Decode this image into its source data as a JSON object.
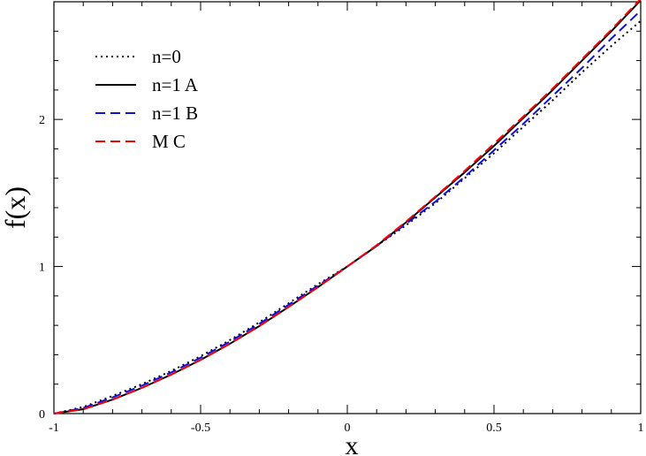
{
  "chart_data": {
    "type": "line",
    "title": "",
    "xlabel": "x",
    "ylabel": "f(x)",
    "xlim": [
      -1,
      1
    ],
    "ylim": [
      0,
      2.8
    ],
    "xticks": [
      -1,
      -0.5,
      0,
      0.5,
      1
    ],
    "xtick_labels": [
      "-1",
      "-0.5",
      "0",
      "0.5",
      "1"
    ],
    "yticks": [
      0,
      1,
      2
    ],
    "ytick_labels": [
      "0",
      "1",
      "2"
    ],
    "grid": false,
    "legend_position": "top-left",
    "x": [
      -1.0,
      -0.9,
      -0.8,
      -0.7,
      -0.6,
      -0.5,
      -0.4,
      -0.3,
      -0.2,
      -0.1,
      0.0,
      0.1,
      0.2,
      0.3,
      0.4,
      0.5,
      0.6,
      0.7,
      0.8,
      0.9,
      1.0
    ],
    "series": [
      {
        "name": "n=0",
        "color": "#000000",
        "style": "dotted",
        "values": [
          0.0,
          0.045,
          0.12,
          0.2,
          0.29,
          0.39,
          0.5,
          0.62,
          0.75,
          0.88,
          1.0,
          1.14,
          1.28,
          1.43,
          1.6,
          1.77,
          1.95,
          2.13,
          2.32,
          2.5,
          2.67
        ]
      },
      {
        "name": "n=1 A",
        "color": "#000000",
        "style": "solid",
        "values": [
          0.0,
          0.03,
          0.095,
          0.175,
          0.265,
          0.365,
          0.475,
          0.595,
          0.725,
          0.86,
          1.0,
          1.14,
          1.3,
          1.47,
          1.64,
          1.82,
          2.01,
          2.2,
          2.4,
          2.6,
          2.81
        ]
      },
      {
        "name": "n=1 B",
        "color": "#1010e0",
        "style": "dashed",
        "values": [
          0.0,
          0.038,
          0.11,
          0.19,
          0.28,
          0.38,
          0.49,
          0.61,
          0.74,
          0.87,
          1.0,
          1.14,
          1.29,
          1.44,
          1.61,
          1.79,
          1.97,
          2.16,
          2.35,
          2.55,
          2.74
        ]
      },
      {
        "name": "M C",
        "color": "#ff0000",
        "style": "dashed",
        "values": [
          0.0,
          0.03,
          0.095,
          0.175,
          0.265,
          0.365,
          0.475,
          0.595,
          0.725,
          0.86,
          1.0,
          1.145,
          1.305,
          1.475,
          1.65,
          1.835,
          2.02,
          2.21,
          2.41,
          2.61,
          2.82
        ]
      }
    ]
  }
}
